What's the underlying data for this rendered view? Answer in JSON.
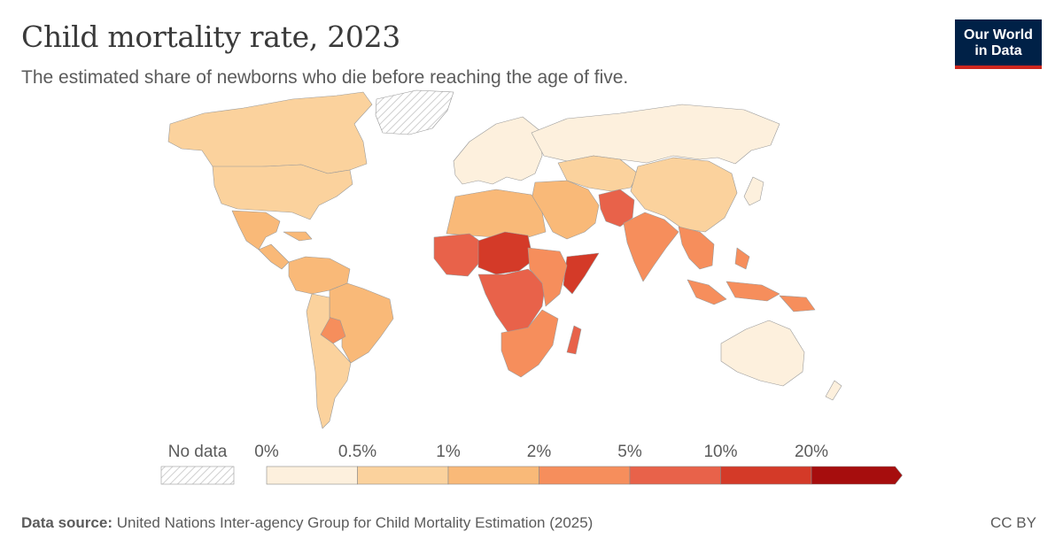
{
  "header": {
    "title": "Child mortality rate, 2023",
    "subtitle": "The estimated share of newborns who die before reaching the age of five."
  },
  "logo": {
    "line1": "Our World",
    "line2": "in Data"
  },
  "legend": {
    "no_data_label": "No data",
    "bins": [
      {
        "label": "0%",
        "color": "#fdf0dd"
      },
      {
        "label": "0.5%",
        "color": "#fbd29d"
      },
      {
        "label": "1%",
        "color": "#f9b978"
      },
      {
        "label": "2%",
        "color": "#f68e5c"
      },
      {
        "label": "5%",
        "color": "#e8624a"
      },
      {
        "label": "10%",
        "color": "#d43a28"
      },
      {
        "label": "20%",
        "color": "#a60d0d"
      }
    ]
  },
  "map_regions": [
    {
      "name": "Canada & Alaska",
      "bin": 1
    },
    {
      "name": "United States",
      "bin": 1
    },
    {
      "name": "Mexico",
      "bin": 2
    },
    {
      "name": "Central America & Caribbean",
      "bin": 2
    },
    {
      "name": "South America north",
      "bin": 2
    },
    {
      "name": "Brazil",
      "bin": 2
    },
    {
      "name": "Bolivia",
      "bin": 3
    },
    {
      "name": "Southern Cone",
      "bin": 1
    },
    {
      "name": "Greenland",
      "bin": "no_data"
    },
    {
      "name": "Europe",
      "bin": 0
    },
    {
      "name": "Russia",
      "bin": 0
    },
    {
      "name": "Central Asia",
      "bin": 1
    },
    {
      "name": "China",
      "bin": 1
    },
    {
      "name": "Middle East",
      "bin": 2
    },
    {
      "name": "Pakistan & Afghanistan",
      "bin": 4
    },
    {
      "name": "India",
      "bin": 3
    },
    {
      "name": "Southeast Asia",
      "bin": 3
    },
    {
      "name": "Indonesia & Philippines",
      "bin": 3
    },
    {
      "name": "Australia",
      "bin": 0
    },
    {
      "name": "New Zealand",
      "bin": 0
    },
    {
      "name": "North Africa",
      "bin": 2
    },
    {
      "name": "West Africa",
      "bin": 4
    },
    {
      "name": "Sahel (Niger, Chad, Nigeria)",
      "bin": 5
    },
    {
      "name": "Somalia",
      "bin": 5
    },
    {
      "name": "Central Africa",
      "bin": 4
    },
    {
      "name": "East Africa",
      "bin": 3
    },
    {
      "name": "Southern Africa",
      "bin": 3
    },
    {
      "name": "Madagascar",
      "bin": 4
    },
    {
      "name": "Japan",
      "bin": 0
    }
  ],
  "footer": {
    "source_label": "Data source:",
    "source_text": "United Nations Inter-agency Group for Child Mortality Estimation (2025)",
    "license": "CC BY"
  }
}
